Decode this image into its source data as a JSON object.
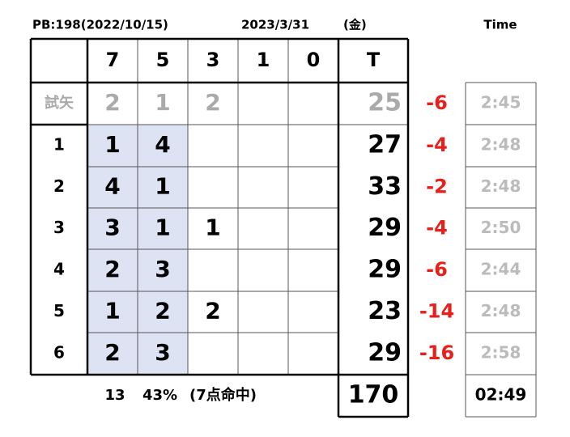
{
  "header": {
    "pb": "PB:198(2022/10/15)",
    "date": "2023/3/31",
    "weekday": "(金)",
    "time_label": "Time"
  },
  "table": {
    "columns": [
      "7",
      "5",
      "3",
      "1",
      "0",
      "T"
    ],
    "rows": [
      {
        "label": "試矢",
        "counts": [
          2,
          1,
          2,
          null,
          null
        ],
        "total": 25,
        "diff": -6,
        "time": "2:45"
      },
      {
        "label": "1",
        "counts": [
          1,
          4,
          null,
          null,
          null
        ],
        "total": 27,
        "diff": -4,
        "time": "2:48"
      },
      {
        "label": "2",
        "counts": [
          4,
          1,
          null,
          null,
          null
        ],
        "total": 33,
        "diff": -2,
        "time": "2:48"
      },
      {
        "label": "3",
        "counts": [
          3,
          1,
          1,
          null,
          null
        ],
        "total": 29,
        "diff": -4,
        "time": "2:50"
      },
      {
        "label": "4",
        "counts": [
          2,
          3,
          null,
          null,
          null
        ],
        "total": 29,
        "diff": -6,
        "time": "2:44"
      },
      {
        "label": "5",
        "counts": [
          1,
          2,
          2,
          null,
          null
        ],
        "total": 23,
        "diff": -14,
        "time": "2:48"
      },
      {
        "label": "6",
        "counts": [
          2,
          3,
          null,
          null,
          null
        ],
        "total": 29,
        "diff": -16,
        "time": "2:58"
      }
    ]
  },
  "footer": {
    "hits": 13,
    "rate": "43%",
    "note": "(7点命中)",
    "total": 170,
    "time": "02:49"
  }
}
